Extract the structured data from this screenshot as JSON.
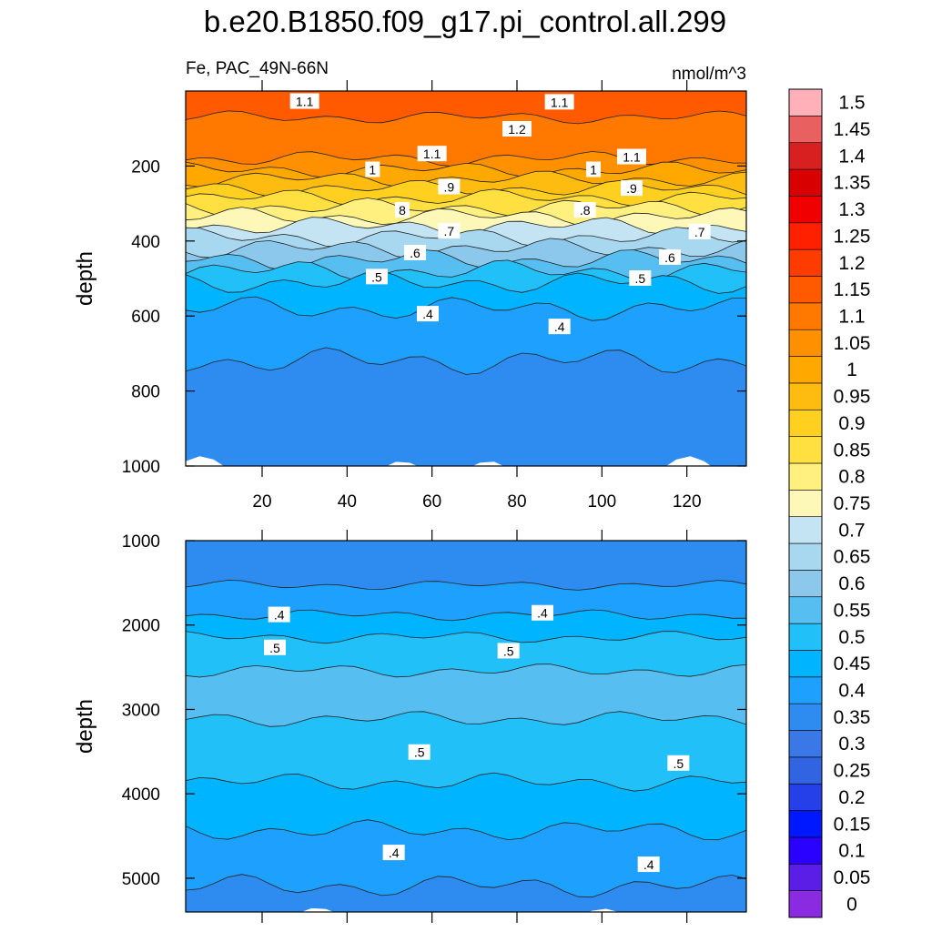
{
  "title": "b.e20.B1850.f09_g17.pi_control.all.299",
  "colorbar": {
    "levels": [
      "0",
      "0.05",
      "0.1",
      "0.15",
      "0.2",
      "0.25",
      "0.3",
      "0.35",
      "0.4",
      "0.45",
      "0.5",
      "0.55",
      "0.6",
      "0.65",
      "0.7",
      "0.75",
      "0.8",
      "0.85",
      "0.9",
      "0.95",
      "1",
      "1.05",
      "1.1",
      "1.15",
      "1.2",
      "1.25",
      "1.3",
      "1.35",
      "1.4",
      "1.45",
      "1.5"
    ],
    "colors": [
      "#8a2be2",
      "#5a1ee6",
      "#2a00ff",
      "#0018ff",
      "#2540e8",
      "#3064e0",
      "#3a78e8",
      "#2e8cf0",
      "#1ea0ff",
      "#00b4ff",
      "#22c0f8",
      "#56bef0",
      "#8cc8ec",
      "#a8d8f0",
      "#c4e4f4",
      "#fdf8b8",
      "#fff080",
      "#ffe040",
      "#ffd020",
      "#ffbc10",
      "#ffa800",
      "#ff9000",
      "#ff7800",
      "#ff5a00",
      "#ff3c00",
      "#ff2000",
      "#f00000",
      "#d80000",
      "#d82020",
      "#e86060",
      "#ffb0b8"
    ]
  },
  "chart_data": [
    {
      "type": "contour",
      "subtitle_left": "Fe, PAC_49N-66N",
      "subtitle_right": "nmol/m^3",
      "ylabel": "depth",
      "xlim": [
        2,
        134
      ],
      "ylim": [
        1000,
        0
      ],
      "x_ticks": [
        "20",
        "40",
        "60",
        "80",
        "100",
        "120"
      ],
      "y_ticks": [
        "200",
        "400",
        "600",
        "800",
        "1000"
      ],
      "contour_labels": [
        {
          "text": "1.1",
          "x": 30,
          "y": 28
        },
        {
          "text": "1.2",
          "x": 80,
          "y": 102
        },
        {
          "text": "1.1",
          "x": 90,
          "y": 30
        },
        {
          "text": "1.1",
          "x": 60,
          "y": 168
        },
        {
          "text": "1.1",
          "x": 107,
          "y": 176
        },
        {
          "text": "1",
          "x": 46,
          "y": 210
        },
        {
          "text": "1",
          "x": 98,
          "y": 210
        },
        {
          "text": "8",
          "x": 53,
          "y": 318
        },
        {
          "text": ".8",
          "x": 96,
          "y": 318
        },
        {
          "text": ".9",
          "x": 64,
          "y": 256
        },
        {
          "text": ".9",
          "x": 107,
          "y": 260
        },
        {
          "text": ".7",
          "x": 64,
          "y": 374
        },
        {
          "text": ".7",
          "x": 123,
          "y": 376
        },
        {
          "text": ".6",
          "x": 56,
          "y": 432
        },
        {
          "text": ".6",
          "x": 116,
          "y": 444
        },
        {
          "text": ".5",
          "x": 47,
          "y": 496
        },
        {
          "text": ".5",
          "x": 109,
          "y": 500
        },
        {
          "text": ".4",
          "x": 59,
          "y": 595
        },
        {
          "text": ".4",
          "x": 90,
          "y": 629
        }
      ],
      "fill_levels": [
        {
          "from": 0.0,
          "value": 1.17
        },
        {
          "from": 0.07,
          "value": 1.12
        },
        {
          "from": 0.18,
          "value": 1.08
        },
        {
          "from": 0.21,
          "value": 1.03
        },
        {
          "from": 0.235,
          "value": 0.98
        },
        {
          "from": 0.26,
          "value": 0.93
        },
        {
          "from": 0.285,
          "value": 0.88
        },
        {
          "from": 0.31,
          "value": 0.83
        },
        {
          "from": 0.335,
          "value": 0.78
        },
        {
          "from": 0.36,
          "value": 0.73
        },
        {
          "from": 0.39,
          "value": 0.68
        },
        {
          "from": 0.42,
          "value": 0.63
        },
        {
          "from": 0.45,
          "value": 0.58
        },
        {
          "from": 0.48,
          "value": 0.53
        },
        {
          "from": 0.51,
          "value": 0.48
        },
        {
          "from": 0.58,
          "value": 0.42
        },
        {
          "from": 0.72,
          "value": 0.37
        }
      ]
    },
    {
      "type": "contour",
      "ylabel": "depth",
      "xlim": [
        2,
        134
      ],
      "ylim": [
        5400,
        1000
      ],
      "y_ticks": [
        "1000",
        "2000",
        "3000",
        "4000",
        "5000"
      ],
      "contour_labels": [
        {
          "text": ".4",
          "x": 24,
          "y": 1880
        },
        {
          "text": ".4",
          "x": 86,
          "y": 1860
        },
        {
          "text": ".5",
          "x": 23,
          "y": 2270
        },
        {
          "text": ".5",
          "x": 78,
          "y": 2310
        },
        {
          "text": ".5",
          "x": 57,
          "y": 3510
        },
        {
          "text": ".5",
          "x": 118,
          "y": 3640
        },
        {
          "text": ".4",
          "x": 51,
          "y": 4700
        },
        {
          "text": ".4",
          "x": 111,
          "y": 4840
        }
      ],
      "fill_levels": [
        {
          "from": 0.0,
          "value": 0.37
        },
        {
          "from": 0.12,
          "value": 0.42
        },
        {
          "from": 0.2,
          "value": 0.47
        },
        {
          "from": 0.26,
          "value": 0.52
        },
        {
          "from": 0.35,
          "value": 0.57
        },
        {
          "from": 0.48,
          "value": 0.52
        },
        {
          "from": 0.65,
          "value": 0.47
        },
        {
          "from": 0.78,
          "value": 0.42
        },
        {
          "from": 0.93,
          "value": 0.37
        }
      ]
    }
  ]
}
